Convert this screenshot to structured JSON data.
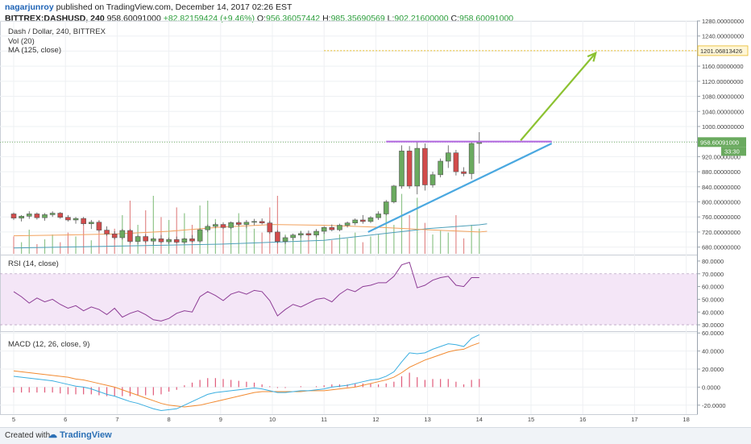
{
  "header": {
    "author": "nagarjunroy",
    "published": "published on TradingView.com, December 14, 2017 02:26 EST",
    "symbol": "BITTREX:DASHUSD, 240",
    "last": "958.60091000",
    "change": "+82.82159424 (+9.46%)",
    "o_label": "O:",
    "o_value": "956.36057442",
    "h_label": "H:",
    "h_value": "985.35690569",
    "l_label": "L:",
    "l_value": "902.21600000",
    "c_label": "C:",
    "c_value": "958.60091000"
  },
  "legends": {
    "title": "Dash / Dollar, 240, BITTREX",
    "vol": "Vol (20)",
    "ma": "MA (125, close)",
    "rsi": "RSI (14, close)",
    "macd": "MACD (12, 26, close, 9)"
  },
  "footer": {
    "created_with": "Created with",
    "brand": "TradingView"
  },
  "colors": {
    "up": "#6aaa5f",
    "down": "#d24b4b",
    "rsi": "#8d3c95",
    "macd": "#3aaee0",
    "signal": "#f28a30",
    "trend": "#4aa8e0",
    "resistance": "#b36be0",
    "arrow": "#8cc231",
    "target": "#e8b923",
    "ma": "#f2a15c"
  },
  "chart_data": [
    {
      "type": "candlestick",
      "title": "Dash / Dollar, 240, BITTREX",
      "x_ticks": [
        "5",
        "6",
        "7",
        "8",
        "9",
        "10",
        "11",
        "12",
        "13",
        "14",
        "15",
        "16",
        "17",
        "18"
      ],
      "ylim": [
        660,
        1280
      ],
      "y_ticks": [
        "680.00000000",
        "720.00000000",
        "760.00000000",
        "800.00000000",
        "840.00000000",
        "880.00000000",
        "920.00000000",
        "960.00000000",
        "1000.00000000",
        "1040.00000000",
        "1080.00000000",
        "1120.00000000",
        "1160.00000000",
        "1200.00000000",
        "1240.00000000",
        "1280.00000000"
      ],
      "price_label": "958.60091000",
      "timer_label": "33:30",
      "target_label": "1201.06813426",
      "target_value": 1201.07,
      "candles": [
        [
          5.0,
          768,
          772,
          752,
          757
        ],
        [
          5.15,
          757,
          765,
          748,
          762
        ],
        [
          5.3,
          762,
          775,
          755,
          768
        ],
        [
          5.45,
          768,
          772,
          753,
          758
        ],
        [
          5.6,
          758,
          770,
          750,
          766
        ],
        [
          5.75,
          766,
          775,
          760,
          770
        ],
        [
          5.9,
          770,
          773,
          755,
          759
        ],
        [
          6.05,
          759,
          765,
          748,
          752
        ],
        [
          6.2,
          752,
          760,
          742,
          756
        ],
        [
          6.35,
          756,
          760,
          738,
          742
        ],
        [
          6.5,
          742,
          752,
          728,
          746
        ],
        [
          6.65,
          746,
          750,
          720,
          725
        ],
        [
          6.8,
          725,
          735,
          710,
          715
        ],
        [
          6.95,
          715,
          722,
          700,
          705
        ],
        [
          7.1,
          705,
          728,
          700,
          724
        ],
        [
          7.25,
          724,
          728,
          690,
          695
        ],
        [
          7.4,
          695,
          712,
          688,
          708
        ],
        [
          7.55,
          708,
          714,
          690,
          696
        ],
        [
          7.7,
          696,
          706,
          686,
          702
        ],
        [
          7.85,
          702,
          712,
          690,
          694
        ],
        [
          8.0,
          694,
          705,
          688,
          700
        ],
        [
          8.15,
          700,
          708,
          690,
          693
        ],
        [
          8.3,
          693,
          705,
          688,
          702
        ],
        [
          8.45,
          702,
          712,
          692,
          696
        ],
        [
          8.6,
          696,
          730,
          692,
          726
        ],
        [
          8.75,
          726,
          740,
          720,
          735
        ],
        [
          8.9,
          735,
          745,
          730,
          740
        ],
        [
          9.05,
          740,
          746,
          728,
          732
        ],
        [
          9.2,
          732,
          748,
          728,
          745
        ],
        [
          9.35,
          745,
          750,
          735,
          740
        ],
        [
          9.5,
          740,
          752,
          730,
          746
        ],
        [
          9.65,
          746,
          755,
          738,
          748
        ],
        [
          9.8,
          748,
          756,
          740,
          744
        ],
        [
          9.95,
          744,
          750,
          715,
          720
        ],
        [
          10.1,
          720,
          725,
          690,
          695
        ],
        [
          10.25,
          695,
          710,
          688,
          705
        ],
        [
          10.4,
          705,
          716,
          698,
          712
        ],
        [
          10.55,
          712,
          722,
          704,
          716
        ],
        [
          10.7,
          716,
          724,
          708,
          712
        ],
        [
          10.85,
          712,
          728,
          706,
          722
        ],
        [
          11.0,
          722,
          736,
          715,
          732
        ],
        [
          11.15,
          732,
          740,
          722,
          726
        ],
        [
          11.3,
          726,
          742,
          722,
          738
        ],
        [
          11.45,
          738,
          748,
          732,
          744
        ],
        [
          11.6,
          744,
          756,
          738,
          752
        ],
        [
          11.75,
          752,
          765,
          742,
          748
        ],
        [
          11.9,
          748,
          762,
          744,
          758
        ],
        [
          12.05,
          758,
          775,
          752,
          768
        ],
        [
          12.2,
          768,
          805,
          764,
          800
        ],
        [
          12.35,
          800,
          845,
          796,
          842
        ],
        [
          12.5,
          842,
          950,
          835,
          935
        ],
        [
          12.65,
          935,
          948,
          835,
          842
        ],
        [
          12.8,
          842,
          960,
          820,
          942
        ],
        [
          12.95,
          942,
          955,
          830,
          845
        ],
        [
          13.1,
          845,
          880,
          838,
          872
        ],
        [
          13.25,
          872,
          915,
          865,
          908
        ],
        [
          13.4,
          908,
          950,
          890,
          930
        ],
        [
          13.55,
          930,
          938,
          870,
          880
        ],
        [
          13.7,
          880,
          892,
          868,
          875
        ],
        [
          13.85,
          875,
          958,
          860,
          955
        ],
        [
          14.0,
          955,
          985,
          902,
          958
        ]
      ],
      "ma_line": [
        [
          5,
          710
        ],
        [
          6,
          712
        ],
        [
          7,
          715
        ],
        [
          8,
          722
        ],
        [
          9,
          733
        ],
        [
          10,
          740
        ],
        [
          11,
          738
        ],
        [
          12,
          733
        ],
        [
          13,
          726
        ],
        [
          14,
          720
        ],
        [
          14.15,
          722
        ]
      ],
      "volume_ma": [
        [
          5,
          6
        ],
        [
          7,
          8
        ],
        [
          9,
          10
        ],
        [
          11,
          14
        ],
        [
          12,
          20
        ],
        [
          13,
          26
        ],
        [
          14,
          30
        ],
        [
          14.15,
          31
        ]
      ],
      "resistance_line": {
        "x": [
          12.2,
          15.4
        ],
        "y": [
          960,
          960
        ]
      },
      "support_trendline": {
        "x": [
          11.85,
          15.4
        ],
        "y": [
          720,
          955
        ]
      },
      "projection_arrow": {
        "x": [
          14.8,
          16.25
        ],
        "y": [
          963,
          1195
        ]
      },
      "volume": [
        [
          5.0,
          18,
          0
        ],
        [
          5.15,
          12,
          1
        ],
        [
          5.3,
          25,
          1
        ],
        [
          5.45,
          10,
          0
        ],
        [
          5.6,
          15,
          1
        ],
        [
          5.75,
          20,
          1
        ],
        [
          5.9,
          12,
          0
        ],
        [
          6.05,
          22,
          0
        ],
        [
          6.2,
          18,
          1
        ],
        [
          6.35,
          30,
          0
        ],
        [
          6.5,
          14,
          1
        ],
        [
          6.65,
          35,
          0
        ],
        [
          6.8,
          20,
          0
        ],
        [
          6.95,
          26,
          0
        ],
        [
          7.1,
          40,
          1
        ],
        [
          7.25,
          55,
          0
        ],
        [
          7.4,
          30,
          1
        ],
        [
          7.55,
          45,
          0
        ],
        [
          7.7,
          60,
          1
        ],
        [
          7.85,
          38,
          0
        ],
        [
          8.0,
          35,
          1
        ],
        [
          8.15,
          48,
          0
        ],
        [
          8.3,
          42,
          1
        ],
        [
          8.45,
          30,
          0
        ],
        [
          8.6,
          50,
          1
        ],
        [
          8.75,
          55,
          1
        ],
        [
          8.9,
          36,
          1
        ],
        [
          9.05,
          28,
          0
        ],
        [
          9.2,
          32,
          1
        ],
        [
          9.35,
          42,
          1
        ],
        [
          9.5,
          30,
          1
        ],
        [
          9.65,
          26,
          1
        ],
        [
          9.8,
          22,
          0
        ],
        [
          9.95,
          48,
          0
        ],
        [
          10.1,
          60,
          0
        ],
        [
          10.25,
          20,
          1
        ],
        [
          10.4,
          16,
          1
        ],
        [
          10.55,
          24,
          1
        ],
        [
          10.7,
          18,
          0
        ],
        [
          10.85,
          20,
          1
        ],
        [
          11.0,
          22,
          1
        ],
        [
          11.15,
          14,
          0
        ],
        [
          11.3,
          20,
          1
        ],
        [
          11.45,
          16,
          1
        ],
        [
          11.6,
          22,
          1
        ],
        [
          11.75,
          12,
          0
        ],
        [
          11.9,
          18,
          1
        ],
        [
          12.05,
          20,
          1
        ],
        [
          12.2,
          45,
          1
        ],
        [
          12.35,
          30,
          1
        ],
        [
          12.5,
          62,
          1
        ],
        [
          12.65,
          40,
          0
        ],
        [
          12.8,
          58,
          1
        ],
        [
          12.95,
          32,
          0
        ],
        [
          13.1,
          20,
          1
        ],
        [
          13.25,
          24,
          1
        ],
        [
          13.4,
          22,
          1
        ],
        [
          13.55,
          40,
          0
        ],
        [
          13.7,
          16,
          0
        ],
        [
          13.85,
          30,
          1
        ],
        [
          14.0,
          26,
          1
        ]
      ]
    },
    {
      "type": "line",
      "title": "RSI (14, close)",
      "ylim": [
        25,
        85
      ],
      "y_ticks": [
        "30.0000",
        "40.0000",
        "50.0000",
        "60.0000",
        "70.0000",
        "80.0000"
      ],
      "band": [
        30,
        70
      ],
      "x": [
        5.0,
        5.15,
        5.3,
        5.45,
        5.6,
        5.75,
        5.9,
        6.05,
        6.2,
        6.35,
        6.5,
        6.65,
        6.8,
        6.95,
        7.1,
        7.25,
        7.4,
        7.55,
        7.7,
        7.85,
        8.0,
        8.15,
        8.3,
        8.45,
        8.6,
        8.75,
        8.9,
        9.05,
        9.2,
        9.35,
        9.5,
        9.65,
        9.8,
        9.95,
        10.1,
        10.25,
        10.4,
        10.55,
        10.7,
        10.85,
        11.0,
        11.15,
        11.3,
        11.45,
        11.6,
        11.75,
        11.9,
        12.05,
        12.2,
        12.35,
        12.5,
        12.65,
        12.8,
        12.95,
        13.1,
        13.25,
        13.4,
        13.55,
        13.7,
        13.85,
        14.0
      ],
      "values": [
        56,
        52,
        47,
        51,
        48,
        50,
        46,
        43,
        45,
        41,
        44,
        42,
        38,
        43,
        36,
        39,
        41,
        38,
        34,
        33,
        35,
        39,
        41,
        40,
        52,
        56,
        53,
        49,
        54,
        56,
        54,
        57,
        56,
        49,
        37,
        42,
        46,
        44,
        47,
        50,
        51,
        48,
        54,
        58,
        56,
        60,
        61,
        63,
        63,
        68,
        77,
        79,
        59,
        61,
        65,
        67,
        68,
        61,
        60,
        67,
        67
      ]
    },
    {
      "type": "line",
      "title": "MACD (12, 26, close, 9)",
      "ylim": [
        -30,
        62
      ],
      "y_ticks": [
        "-20.0000",
        "0.0000",
        "20.0000",
        "40.0000",
        "60.0000"
      ],
      "x": [
        5.0,
        5.15,
        5.3,
        5.45,
        5.6,
        5.75,
        5.9,
        6.05,
        6.2,
        6.35,
        6.5,
        6.65,
        6.8,
        6.95,
        7.1,
        7.25,
        7.4,
        7.55,
        7.7,
        7.85,
        8.0,
        8.15,
        8.3,
        8.45,
        8.6,
        8.75,
        8.9,
        9.05,
        9.2,
        9.35,
        9.5,
        9.65,
        9.8,
        9.95,
        10.1,
        10.25,
        10.4,
        10.55,
        10.7,
        10.85,
        11.0,
        11.15,
        11.3,
        11.45,
        11.6,
        11.75,
        11.9,
        12.05,
        12.2,
        12.35,
        12.5,
        12.65,
        12.8,
        12.95,
        13.1,
        13.25,
        13.4,
        13.55,
        13.7,
        13.85,
        14.0
      ],
      "series": [
        {
          "name": "MACD",
          "values": [
            12,
            11,
            10,
            9,
            8,
            7,
            5,
            3,
            1,
            0,
            -2,
            -5,
            -8,
            -10,
            -13,
            -16,
            -18,
            -21,
            -24,
            -26,
            -25,
            -24,
            -20,
            -16,
            -12,
            -8,
            -6,
            -5,
            -4,
            -3,
            -2,
            -1,
            -2,
            -4,
            -6,
            -6,
            -5,
            -4,
            -4,
            -3,
            -2,
            0,
            1,
            2,
            4,
            6,
            8,
            9,
            12,
            17,
            28,
            38,
            37,
            38,
            42,
            45,
            48,
            47,
            45,
            54,
            58
          ]
        },
        {
          "name": "Signal",
          "values": [
            18,
            17,
            16,
            15,
            14,
            13,
            12,
            11,
            9,
            8,
            6,
            4,
            2,
            0,
            -3,
            -6,
            -9,
            -12,
            -15,
            -18,
            -20,
            -21,
            -22,
            -21,
            -20,
            -18,
            -16,
            -14,
            -12,
            -10,
            -8,
            -6,
            -5,
            -5,
            -5,
            -5,
            -5,
            -5,
            -4,
            -4,
            -4,
            -3,
            -2,
            -1,
            0,
            2,
            4,
            6,
            8,
            11,
            16,
            22,
            26,
            30,
            33,
            36,
            39,
            41,
            42,
            46,
            49
          ]
        }
      ],
      "histogram": [
        -6,
        -6,
        -6,
        -6,
        -6,
        -6,
        -7,
        -8,
        -8,
        -8,
        -8,
        -9,
        -10,
        -10,
        -10,
        -10,
        -9,
        -9,
        -9,
        -8,
        -5,
        -3,
        2,
        5,
        8,
        10,
        10,
        9,
        8,
        7,
        6,
        5,
        3,
        1,
        -1,
        -1,
        0,
        1,
        0,
        1,
        2,
        3,
        3,
        3,
        4,
        4,
        4,
        3,
        4,
        6,
        12,
        16,
        11,
        8,
        9,
        9,
        9,
        6,
        3,
        8,
        9
      ]
    }
  ]
}
